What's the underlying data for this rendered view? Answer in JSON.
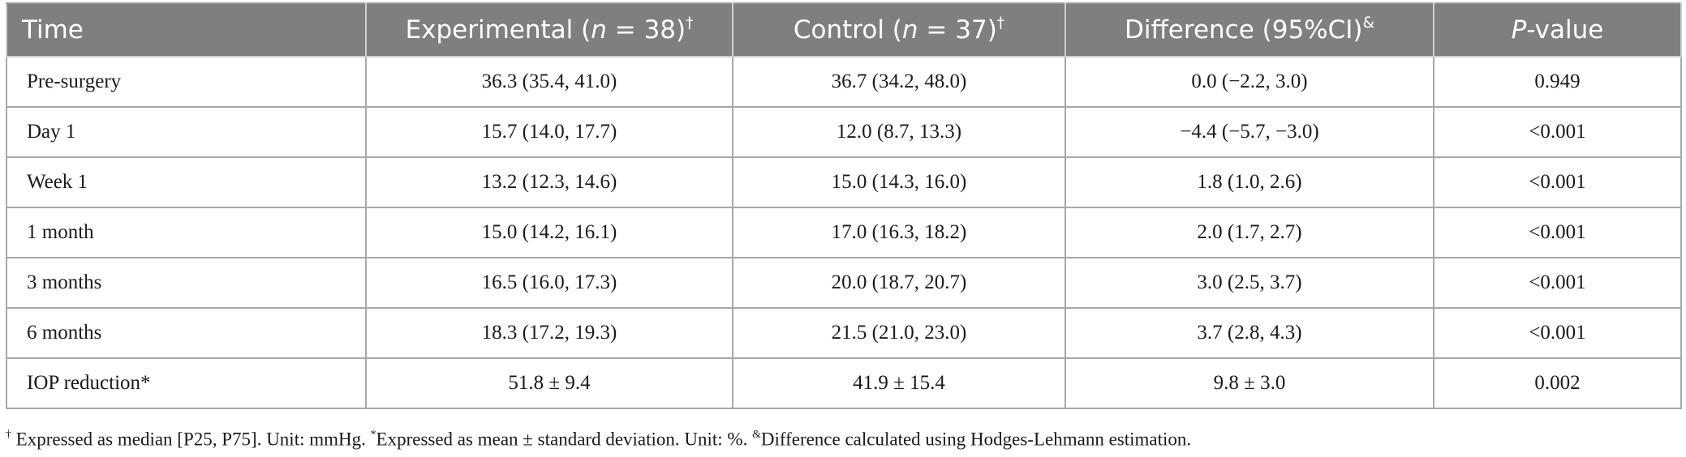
{
  "table": {
    "header": [
      [
        "Time"
      ],
      [
        "Experimental (",
        "n",
        " = 38)",
        "†"
      ],
      [
        "Control (",
        "n",
        " = 37)",
        "†"
      ],
      [
        "Difference (95%CI)",
        "&"
      ],
      [
        "P",
        "-value"
      ]
    ],
    "rows": [
      [
        "Pre-surgery",
        "36.3 (35.4, 41.0)",
        "36.7 (34.2, 48.0)",
        "0.0 (−2.2, 3.0)",
        "0.949"
      ],
      [
        "Day 1",
        "15.7 (14.0, 17.7)",
        "12.0 (8.7, 13.3)",
        "−4.4 (−5.7, −3.0)",
        "<0.001"
      ],
      [
        "Week 1",
        "13.2 (12.3, 14.6)",
        "15.0 (14.3, 16.0)",
        "1.8 (1.0, 2.6)",
        "<0.001"
      ],
      [
        "1 month",
        "15.0 (14.2, 16.1)",
        "17.0 (16.3, 18.2)",
        "2.0 (1.7, 2.7)",
        "<0.001"
      ],
      [
        "3 months",
        "16.5 (16.0, 17.3)",
        "20.0 (18.7, 20.7)",
        "3.0 (2.5, 3.7)",
        "<0.001"
      ],
      [
        "6 months",
        "18.3 (17.2, 19.3)",
        "21.5 (21.0, 23.0)",
        "3.7 (2.8, 4.3)",
        "<0.001"
      ],
      [
        "IOP reduction*",
        "51.8 ± 9.4",
        "41.9 ± 15.4",
        "9.8 ± 3.0",
        "0.002"
      ]
    ],
    "footnote": [
      "†",
      " Expressed as median [P25, P75]. Unit: mmHg. ",
      "*",
      "Expressed as mean ± standard deviation. Unit: %. ",
      "&",
      "Difference calculated using Hodges-Lehmann estimation."
    ]
  }
}
